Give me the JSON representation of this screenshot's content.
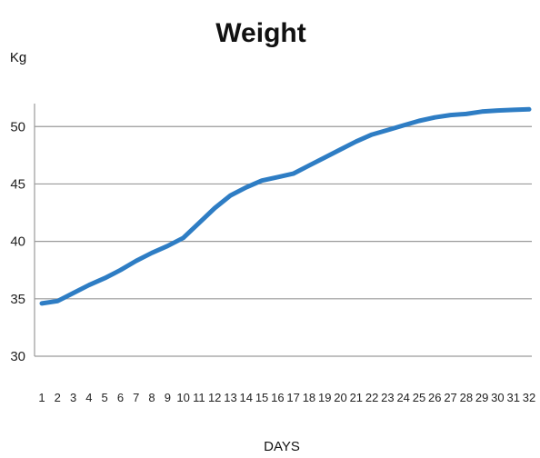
{
  "chart_data": {
    "type": "line",
    "title": "Weight",
    "xlabel": "DAYS",
    "ylabel": "Kg",
    "ylim": [
      30,
      52
    ],
    "yticks": [
      30,
      35,
      40,
      45,
      50
    ],
    "grid": true,
    "x": [
      1,
      2,
      3,
      4,
      5,
      6,
      7,
      8,
      9,
      10,
      11,
      12,
      13,
      14,
      15,
      16,
      17,
      18,
      19,
      20,
      21,
      22,
      23,
      24,
      25,
      26,
      27,
      28,
      29,
      30,
      31,
      32
    ],
    "series": [
      {
        "name": "",
        "color": "#2e7dc4",
        "values": [
          34.6,
          34.8,
          35.5,
          36.2,
          36.8,
          37.5,
          38.3,
          39.0,
          39.6,
          40.3,
          41.6,
          42.9,
          44.0,
          44.7,
          45.3,
          45.6,
          45.9,
          46.6,
          47.3,
          48.0,
          48.7,
          49.3,
          49.7,
          50.1,
          50.5,
          50.8,
          51.0,
          51.1,
          51.3,
          51.4,
          51.45,
          51.5
        ]
      }
    ]
  }
}
